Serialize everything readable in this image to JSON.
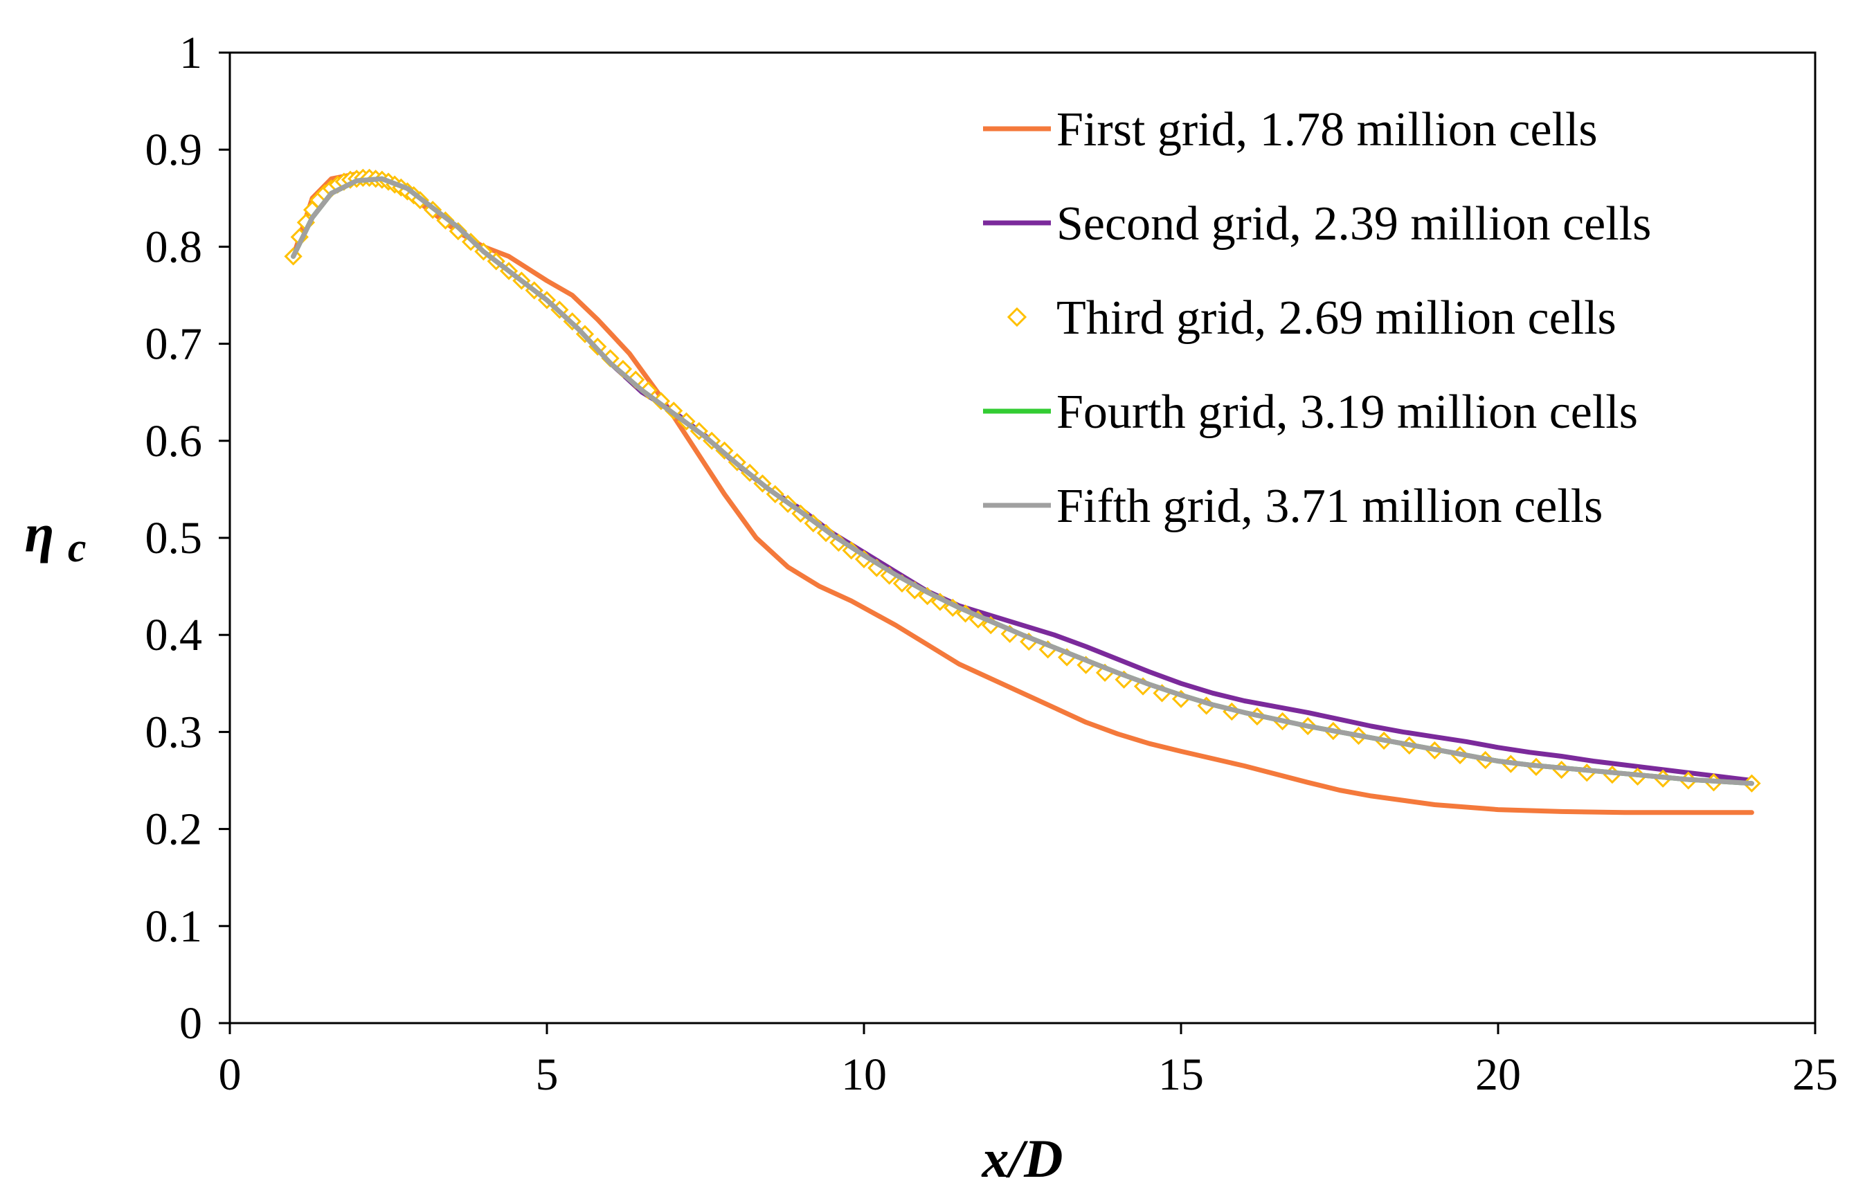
{
  "chart_data": {
    "type": "line",
    "title": "",
    "xlabel": "x/D",
    "ylabel_main": "η",
    "ylabel_sub": "c",
    "xlim": [
      0,
      25
    ],
    "ylim": [
      0,
      1
    ],
    "x_ticks": [
      0,
      5,
      10,
      15,
      20,
      25
    ],
    "x_tick_labels": [
      "0",
      "5",
      "10",
      "15",
      "20",
      "25"
    ],
    "y_ticks": [
      0,
      0.1,
      0.2,
      0.3,
      0.4,
      0.5,
      0.6,
      0.7,
      0.8,
      0.9,
      1
    ],
    "y_tick_labels": [
      "0",
      "0.1",
      "0.2",
      "0.3",
      "0.4",
      "0.5",
      "0.6",
      "0.7",
      "0.8",
      "0.9",
      "1"
    ],
    "grid": false,
    "legend_position": "top-right",
    "series": [
      {
        "name": "First grid, 1.78 million cells",
        "color": "#F4793B",
        "style": "line",
        "x": [
          1.0,
          1.3,
          1.6,
          2.0,
          2.4,
          2.8,
          3.2,
          3.6,
          4.0,
          4.4,
          5.0,
          5.4,
          5.8,
          6.3,
          6.8,
          7.3,
          7.8,
          8.3,
          8.8,
          9.3,
          9.8,
          10.5,
          11.0,
          11.5,
          12.0,
          12.5,
          13.0,
          13.5,
          14.0,
          14.5,
          15.0,
          16.0,
          17.0,
          17.5,
          18.0,
          19.0,
          20.0,
          21.0,
          22.0,
          23.0,
          24.0
        ],
        "y": [
          0.79,
          0.85,
          0.87,
          0.875,
          0.87,
          0.855,
          0.835,
          0.815,
          0.8,
          0.79,
          0.765,
          0.75,
          0.725,
          0.69,
          0.645,
          0.595,
          0.545,
          0.5,
          0.47,
          0.45,
          0.435,
          0.41,
          0.39,
          0.37,
          0.355,
          0.34,
          0.325,
          0.31,
          0.298,
          0.288,
          0.28,
          0.265,
          0.248,
          0.24,
          0.234,
          0.225,
          0.22,
          0.218,
          0.217,
          0.217,
          0.217
        ]
      },
      {
        "name": "Second grid, 2.39 million cells",
        "color": "#7B2A9B",
        "style": "line",
        "x": [
          1.0,
          1.3,
          1.6,
          2.0,
          2.4,
          2.8,
          3.2,
          3.6,
          4.0,
          4.5,
          5.0,
          5.5,
          6.0,
          6.5,
          7.0,
          7.5,
          8.0,
          8.5,
          9.0,
          9.5,
          10.0,
          10.5,
          11.0,
          11.5,
          12.0,
          12.5,
          13.0,
          13.5,
          14.0,
          14.5,
          15.0,
          15.5,
          16.0,
          16.5,
          17.0,
          17.5,
          18.0,
          18.5,
          19.0,
          19.5,
          20.0,
          20.5,
          21.0,
          21.5,
          22.0,
          22.5,
          23.0,
          23.5,
          24.0
        ],
        "y": [
          0.79,
          0.83,
          0.855,
          0.868,
          0.87,
          0.86,
          0.84,
          0.82,
          0.795,
          0.77,
          0.745,
          0.715,
          0.68,
          0.65,
          0.63,
          0.605,
          0.575,
          0.55,
          0.53,
          0.505,
          0.485,
          0.465,
          0.445,
          0.43,
          0.42,
          0.41,
          0.4,
          0.388,
          0.375,
          0.362,
          0.35,
          0.34,
          0.332,
          0.326,
          0.32,
          0.313,
          0.306,
          0.3,
          0.295,
          0.29,
          0.284,
          0.279,
          0.275,
          0.27,
          0.266,
          0.262,
          0.258,
          0.254,
          0.25
        ]
      },
      {
        "name": "Third grid, 2.69 million cells",
        "color": "#FFC000",
        "style": "markers",
        "x": [
          1.0,
          1.1,
          1.2,
          1.3,
          1.4,
          1.5,
          1.6,
          1.7,
          1.8,
          1.9,
          2.0,
          2.1,
          2.2,
          2.3,
          2.4,
          2.5,
          2.6,
          2.7,
          2.8,
          2.9,
          3.0,
          3.2,
          3.4,
          3.6,
          3.8,
          4.0,
          4.2,
          4.4,
          4.6,
          4.8,
          5.0,
          5.2,
          5.4,
          5.6,
          5.8,
          6.0,
          6.2,
          6.4,
          6.6,
          6.8,
          7.0,
          7.2,
          7.4,
          7.6,
          7.8,
          8.0,
          8.2,
          8.4,
          8.6,
          8.8,
          9.0,
          9.2,
          9.4,
          9.6,
          9.8,
          10.0,
          10.2,
          10.4,
          10.6,
          10.8,
          11.0,
          11.2,
          11.4,
          11.6,
          11.8,
          12.0,
          12.3,
          12.6,
          12.9,
          13.2,
          13.5,
          13.8,
          14.1,
          14.4,
          14.7,
          15.0,
          15.4,
          15.8,
          16.2,
          16.6,
          17.0,
          17.4,
          17.8,
          18.2,
          18.6,
          19.0,
          19.4,
          19.8,
          20.2,
          20.6,
          21.0,
          21.4,
          21.8,
          22.2,
          22.6,
          23.0,
          23.4,
          24.0
        ],
        "y": [
          0.79,
          0.81,
          0.825,
          0.838,
          0.848,
          0.855,
          0.86,
          0.864,
          0.867,
          0.869,
          0.87,
          0.871,
          0.871,
          0.87,
          0.869,
          0.867,
          0.864,
          0.861,
          0.857,
          0.853,
          0.848,
          0.838,
          0.827,
          0.816,
          0.805,
          0.795,
          0.785,
          0.775,
          0.765,
          0.755,
          0.745,
          0.735,
          0.723,
          0.71,
          0.697,
          0.685,
          0.674,
          0.663,
          0.652,
          0.641,
          0.631,
          0.62,
          0.61,
          0.6,
          0.59,
          0.578,
          0.567,
          0.556,
          0.545,
          0.535,
          0.525,
          0.515,
          0.505,
          0.495,
          0.487,
          0.478,
          0.469,
          0.461,
          0.453,
          0.446,
          0.44,
          0.434,
          0.428,
          0.422,
          0.416,
          0.41,
          0.401,
          0.393,
          0.385,
          0.377,
          0.369,
          0.361,
          0.354,
          0.347,
          0.34,
          0.334,
          0.327,
          0.321,
          0.316,
          0.311,
          0.306,
          0.301,
          0.296,
          0.291,
          0.286,
          0.281,
          0.276,
          0.271,
          0.267,
          0.264,
          0.261,
          0.258,
          0.256,
          0.254,
          0.252,
          0.25,
          0.248,
          0.247
        ]
      },
      {
        "name": "Fourth grid, 3.19 million cells",
        "color": "#33CC33",
        "style": "line",
        "x": [
          1.0,
          1.3,
          1.6,
          2.0,
          2.4,
          2.8,
          3.2,
          3.6,
          4.0,
          4.5,
          5.0,
          5.5,
          6.0,
          6.5,
          7.0,
          7.5,
          8.0,
          8.5,
          9.0,
          9.5,
          10.0,
          10.5,
          11.0,
          11.5,
          12.0,
          12.5,
          13.0,
          13.5,
          14.0,
          14.5,
          15.0,
          15.5,
          16.0,
          16.5,
          17.0,
          17.5,
          18.0,
          18.5,
          19.0,
          19.5,
          20.0,
          20.5,
          21.0,
          21.5,
          22.0,
          22.5,
          23.0,
          23.5,
          24.0
        ],
        "y": [
          0.79,
          0.83,
          0.855,
          0.868,
          0.87,
          0.86,
          0.84,
          0.82,
          0.795,
          0.77,
          0.745,
          0.715,
          0.68,
          0.652,
          0.628,
          0.604,
          0.576,
          0.55,
          0.527,
          0.503,
          0.482,
          0.462,
          0.444,
          0.428,
          0.414,
          0.4,
          0.387,
          0.374,
          0.361,
          0.349,
          0.338,
          0.328,
          0.32,
          0.313,
          0.306,
          0.3,
          0.294,
          0.288,
          0.282,
          0.276,
          0.27,
          0.266,
          0.263,
          0.26,
          0.257,
          0.254,
          0.251,
          0.249,
          0.247
        ]
      },
      {
        "name": "Fifth grid, 3.71 million cells",
        "color": "#A0A0A0",
        "style": "line",
        "x": [
          1.0,
          1.3,
          1.6,
          2.0,
          2.4,
          2.8,
          3.2,
          3.6,
          4.0,
          4.5,
          5.0,
          5.5,
          6.0,
          6.5,
          7.0,
          7.5,
          8.0,
          8.5,
          9.0,
          9.5,
          10.0,
          10.5,
          11.0,
          11.5,
          12.0,
          12.5,
          13.0,
          13.5,
          14.0,
          14.5,
          15.0,
          15.5,
          16.0,
          16.5,
          17.0,
          17.5,
          18.0,
          18.5,
          19.0,
          19.5,
          20.0,
          20.5,
          21.0,
          21.5,
          22.0,
          22.5,
          23.0,
          23.5,
          24.0
        ],
        "y": [
          0.79,
          0.83,
          0.855,
          0.868,
          0.87,
          0.86,
          0.84,
          0.82,
          0.795,
          0.77,
          0.745,
          0.715,
          0.68,
          0.652,
          0.628,
          0.604,
          0.576,
          0.55,
          0.527,
          0.503,
          0.482,
          0.462,
          0.444,
          0.428,
          0.414,
          0.4,
          0.387,
          0.374,
          0.361,
          0.349,
          0.338,
          0.328,
          0.32,
          0.313,
          0.306,
          0.3,
          0.294,
          0.288,
          0.282,
          0.276,
          0.27,
          0.266,
          0.263,
          0.26,
          0.257,
          0.254,
          0.251,
          0.249,
          0.247
        ]
      }
    ]
  }
}
